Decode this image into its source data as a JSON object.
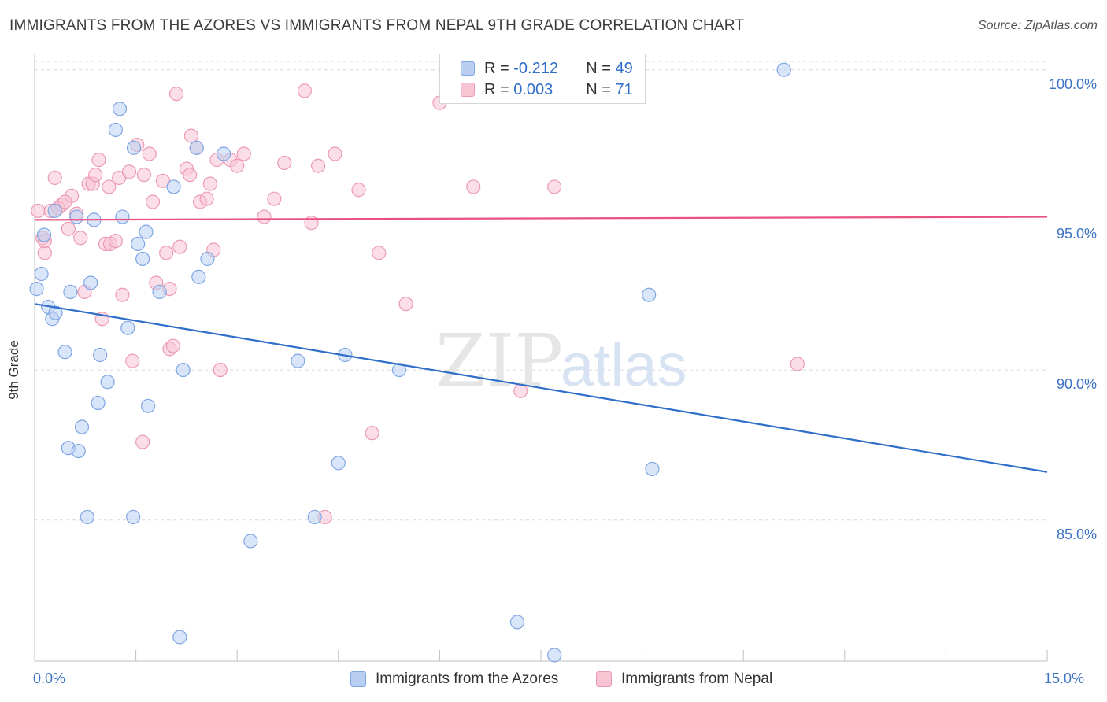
{
  "title": "IMMIGRANTS FROM THE AZORES VS IMMIGRANTS FROM NEPAL 9TH GRADE CORRELATION CHART",
  "source": "Source: ZipAtlas.com",
  "watermark": {
    "zip": "ZIP",
    "atlas": "atlas"
  },
  "colors": {
    "blue_fill": "#b9cff2",
    "blue_stroke": "#7fa6e4",
    "blue_line": "#2f6ec9",
    "pink_fill": "#f8c3d3",
    "pink_stroke": "#ec9ab4",
    "pink_line": "#e8527f",
    "tick_label": "#3d73c5",
    "grid": "#d9d9d9"
  },
  "legend": {
    "r_label": "R =",
    "n_label": "N =",
    "azores": {
      "r": "-0.212",
      "n": "49"
    },
    "nepal": {
      "r": "0.003",
      "n": "71"
    }
  },
  "chart_data": {
    "type": "scatter",
    "xlabel": "",
    "ylabel": "9th Grade",
    "xlim": [
      0,
      15
    ],
    "ylim": [
      80.3,
      100.7
    ],
    "x_ticks": [
      0,
      1.5,
      3,
      4.5,
      6,
      7.5,
      9,
      10.5,
      12,
      13.5,
      15
    ],
    "x_tick_labels": {
      "min": "0.0%",
      "max": "15.0%"
    },
    "y_ticks": [
      85,
      90,
      95,
      100
    ],
    "y_tick_labels": [
      "85.0%",
      "90.0%",
      "95.0%",
      "100.0%"
    ],
    "grid": "horizontal dashed",
    "legend_position": "top-center",
    "series": [
      {
        "name": "Immigrants from the Azores",
        "color": "blue",
        "trend": {
          "x": [
            0,
            15
          ],
          "y": [
            92.2,
            86.6
          ]
        },
        "points": [
          [
            0.03,
            92.7
          ],
          [
            0.1,
            93.2
          ],
          [
            0.14,
            94.5
          ],
          [
            0.2,
            92.1
          ],
          [
            0.26,
            91.7
          ],
          [
            0.31,
            91.9
          ],
          [
            0.45,
            90.6
          ],
          [
            0.5,
            87.4
          ],
          [
            0.53,
            92.6
          ],
          [
            0.62,
            95.1
          ],
          [
            0.65,
            87.3
          ],
          [
            0.7,
            88.1
          ],
          [
            0.78,
            85.1
          ],
          [
            0.83,
            92.9
          ],
          [
            0.88,
            95.0
          ],
          [
            0.94,
            88.9
          ],
          [
            0.97,
            90.5
          ],
          [
            1.08,
            89.6
          ],
          [
            1.2,
            98.0
          ],
          [
            1.26,
            98.7
          ],
          [
            1.3,
            95.1
          ],
          [
            1.38,
            91.4
          ],
          [
            1.46,
            85.1
          ],
          [
            1.47,
            97.4
          ],
          [
            1.53,
            94.2
          ],
          [
            1.6,
            93.7
          ],
          [
            1.65,
            94.6
          ],
          [
            1.68,
            88.8
          ],
          [
            1.85,
            92.6
          ],
          [
            2.06,
            96.1
          ],
          [
            2.15,
            81.1
          ],
          [
            2.2,
            90.0
          ],
          [
            2.4,
            97.4
          ],
          [
            2.43,
            93.1
          ],
          [
            2.56,
            93.7
          ],
          [
            2.8,
            97.2
          ],
          [
            3.2,
            84.3
          ],
          [
            3.9,
            90.3
          ],
          [
            4.15,
            85.1
          ],
          [
            4.5,
            86.9
          ],
          [
            4.6,
            90.5
          ],
          [
            5.4,
            90.0
          ],
          [
            6.3,
            99.1
          ],
          [
            7.15,
            81.6
          ],
          [
            7.7,
            80.5
          ],
          [
            9.1,
            92.5
          ],
          [
            9.15,
            86.7
          ],
          [
            11.1,
            100.0
          ],
          [
            0.3,
            95.3
          ]
        ]
      },
      {
        "name": "Immigrants from Nepal",
        "color": "pink",
        "trend": {
          "x": [
            0,
            15
          ],
          "y": [
            95.0,
            95.1
          ]
        },
        "points": [
          [
            0.05,
            95.3
          ],
          [
            0.12,
            94.4
          ],
          [
            0.15,
            93.9
          ],
          [
            0.24,
            95.3
          ],
          [
            0.3,
            96.4
          ],
          [
            0.4,
            95.5
          ],
          [
            0.5,
            94.7
          ],
          [
            0.55,
            95.8
          ],
          [
            0.62,
            95.2
          ],
          [
            0.68,
            94.4
          ],
          [
            0.74,
            92.6
          ],
          [
            0.8,
            96.2
          ],
          [
            0.86,
            96.2
          ],
          [
            0.9,
            96.5
          ],
          [
            0.95,
            97.0
          ],
          [
            1.0,
            91.7
          ],
          [
            1.05,
            94.2
          ],
          [
            1.12,
            94.2
          ],
          [
            1.2,
            94.3
          ],
          [
            1.25,
            96.4
          ],
          [
            1.3,
            92.5
          ],
          [
            1.4,
            96.6
          ],
          [
            1.45,
            90.3
          ],
          [
            1.52,
            97.5
          ],
          [
            1.6,
            87.6
          ],
          [
            1.62,
            96.5
          ],
          [
            1.7,
            97.2
          ],
          [
            1.75,
            95.6
          ],
          [
            1.8,
            92.9
          ],
          [
            1.9,
            96.3
          ],
          [
            1.95,
            93.9
          ],
          [
            2.0,
            90.7
          ],
          [
            2.05,
            90.8
          ],
          [
            2.1,
            99.2
          ],
          [
            2.15,
            94.1
          ],
          [
            2.25,
            96.7
          ],
          [
            2.3,
            96.5
          ],
          [
            2.32,
            97.8
          ],
          [
            2.4,
            97.4
          ],
          [
            2.45,
            95.6
          ],
          [
            2.55,
            95.7
          ],
          [
            2.6,
            96.2
          ],
          [
            2.65,
            94.0
          ],
          [
            2.7,
            97.0
          ],
          [
            2.75,
            90.0
          ],
          [
            2.9,
            97.0
          ],
          [
            3.0,
            96.8
          ],
          [
            3.1,
            97.2
          ],
          [
            3.4,
            95.1
          ],
          [
            3.55,
            95.7
          ],
          [
            3.7,
            96.9
          ],
          [
            4.0,
            99.3
          ],
          [
            4.1,
            94.9
          ],
          [
            4.2,
            96.8
          ],
          [
            4.3,
            85.1
          ],
          [
            4.45,
            97.2
          ],
          [
            4.8,
            96.0
          ],
          [
            5.0,
            87.9
          ],
          [
            5.1,
            93.9
          ],
          [
            5.5,
            92.2
          ],
          [
            6.0,
            98.9
          ],
          [
            6.3,
            100.0
          ],
          [
            6.5,
            96.1
          ],
          [
            7.2,
            89.3
          ],
          [
            7.7,
            96.1
          ],
          [
            11.3,
            90.2
          ],
          [
            0.15,
            94.3
          ],
          [
            0.35,
            95.4
          ],
          [
            0.45,
            95.6
          ],
          [
            1.1,
            96.1
          ],
          [
            2.0,
            92.7
          ]
        ]
      }
    ]
  }
}
